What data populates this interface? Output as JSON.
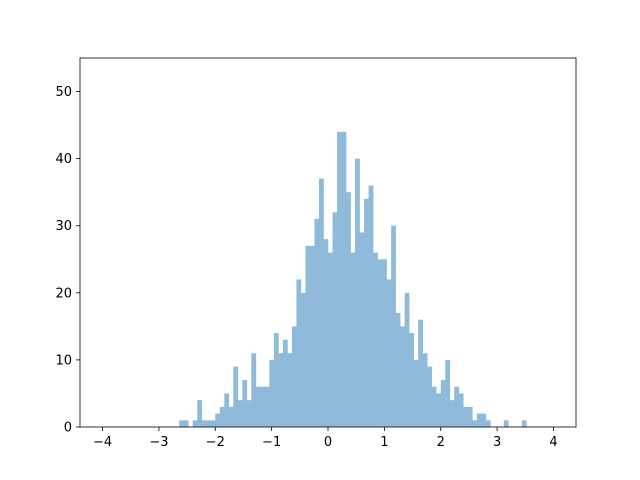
{
  "chart_data": {
    "type": "bar",
    "title": "",
    "xlabel": "",
    "ylabel": "",
    "xlim": [
      -4.4,
      4.4
    ],
    "ylim": [
      0,
      55
    ],
    "xticks": [
      -4,
      -3,
      -2,
      -1,
      0,
      1,
      2,
      3,
      4
    ],
    "yticks": [
      0,
      10,
      20,
      30,
      40,
      50
    ],
    "xtick_labels": [
      "−4",
      "−3",
      "−2",
      "−1",
      "0",
      "1",
      "2",
      "3",
      "4"
    ],
    "ytick_labels": [
      "0",
      "10",
      "20",
      "30",
      "40",
      "50"
    ],
    "grid": false,
    "legend": "none",
    "bar_color": "#8fbad9",
    "bin_range": [
      -4,
      4
    ],
    "bin_count": 100,
    "values": [
      0,
      0,
      0,
      0,
      0,
      0,
      0,
      0,
      0,
      0,
      0,
      0,
      0,
      0,
      0,
      0,
      0,
      1,
      1,
      0,
      1,
      4,
      1,
      1,
      1,
      2,
      3,
      5,
      3,
      9,
      4,
      7,
      4,
      11,
      6,
      6,
      6,
      10,
      14,
      11,
      13,
      11,
      15,
      22,
      20,
      27,
      27,
      31,
      37,
      28,
      26,
      32,
      44,
      44,
      35,
      26,
      40,
      29,
      34,
      36,
      26,
      25,
      25,
      22,
      30,
      17,
      15,
      20,
      14,
      10,
      16,
      11,
      9,
      6,
      5,
      7,
      10,
      4,
      6,
      5,
      3,
      3,
      1,
      2,
      2,
      1,
      0,
      0,
      0,
      1,
      0,
      0,
      0,
      1,
      0,
      0,
      0,
      0,
      0,
      0
    ]
  }
}
